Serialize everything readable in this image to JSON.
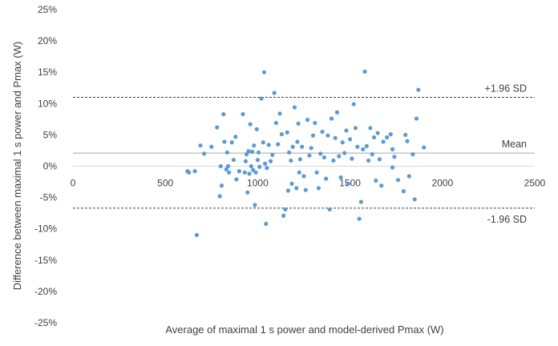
{
  "chart_data": {
    "type": "scatter",
    "title": "",
    "xlabel": "Average of maximal 1 s power and model-derived Pmax (W)",
    "ylabel": "Difference between maximal 1 s power and Pmax (W)",
    "xlim": [
      0,
      2500
    ],
    "ylim": [
      -25,
      25
    ],
    "x_ticks": [
      0,
      500,
      1000,
      1500,
      2000,
      2500
    ],
    "x_tick_labels": [
      "0",
      "500",
      "1000",
      "1500",
      "2000",
      "2500"
    ],
    "y_ticks": [
      25,
      20,
      15,
      10,
      5,
      0,
      -5,
      -10,
      -15,
      -20,
      -25
    ],
    "y_tick_labels": [
      "25%",
      "20%",
      "15%",
      "10%",
      "5%",
      "0%",
      "-5%",
      "-10%",
      "-15%",
      "-20%",
      "-25%"
    ],
    "grid": false,
    "marker_color": "#5b9bd5",
    "reference_lines": [
      {
        "label": "+1.96 SD",
        "value": 11.0,
        "style": "dashed",
        "color": "#404040"
      },
      {
        "label": "Mean",
        "value": 2.1,
        "style": "solid",
        "color": "#a6a6a6"
      },
      {
        "label": "-1.96 SD",
        "value": -6.7,
        "style": "dashed",
        "color": "#404040"
      }
    ],
    "points": [
      [
        620,
        -0.8
      ],
      [
        628,
        -1.0
      ],
      [
        660,
        -0.8
      ],
      [
        670,
        -11.0
      ],
      [
        690,
        3.3
      ],
      [
        710,
        2.0
      ],
      [
        750,
        3.1
      ],
      [
        780,
        6.2
      ],
      [
        795,
        -4.8
      ],
      [
        800,
        0.0
      ],
      [
        805,
        -3.1
      ],
      [
        815,
        8.3
      ],
      [
        820,
        3.9
      ],
      [
        830,
        -0.5
      ],
      [
        835,
        2.2
      ],
      [
        840,
        0.0
      ],
      [
        845,
        -1.0
      ],
      [
        860,
        3.8
      ],
      [
        870,
        1.0
      ],
      [
        880,
        4.7
      ],
      [
        885,
        -2.1
      ],
      [
        900,
        -0.8
      ],
      [
        920,
        8.3
      ],
      [
        930,
        -1.0
      ],
      [
        935,
        0.8
      ],
      [
        940,
        1.9
      ],
      [
        945,
        -4.2
      ],
      [
        950,
        2.4
      ],
      [
        955,
        -1.2
      ],
      [
        960,
        6.7
      ],
      [
        965,
        0.0
      ],
      [
        970,
        2.3
      ],
      [
        975,
        -0.6
      ],
      [
        980,
        3.3
      ],
      [
        985,
        -6.2
      ],
      [
        990,
        -1.0
      ],
      [
        995,
        5.9
      ],
      [
        1000,
        1.0
      ],
      [
        1005,
        2.2
      ],
      [
        1010,
        -0.1
      ],
      [
        1020,
        10.8
      ],
      [
        1030,
        3.8
      ],
      [
        1035,
        15.0
      ],
      [
        1040,
        0.4
      ],
      [
        1045,
        -9.2
      ],
      [
        1050,
        -0.3
      ],
      [
        1060,
        3.4
      ],
      [
        1070,
        0.8
      ],
      [
        1080,
        1.8
      ],
      [
        1090,
        11.7
      ],
      [
        1100,
        6.9
      ],
      [
        1110,
        3.5
      ],
      [
        1120,
        8.4
      ],
      [
        1130,
        5.1
      ],
      [
        1140,
        -7.9
      ],
      [
        1150,
        -6.9
      ],
      [
        1160,
        5.4
      ],
      [
        1165,
        -3.9
      ],
      [
        1170,
        2.2
      ],
      [
        1180,
        0.9
      ],
      [
        1185,
        -2.8
      ],
      [
        1190,
        3.1
      ],
      [
        1200,
        9.4
      ],
      [
        1210,
        -3.5
      ],
      [
        1215,
        3.9
      ],
      [
        1220,
        6.8
      ],
      [
        1225,
        -1.0
      ],
      [
        1230,
        1.1
      ],
      [
        1240,
        3.1
      ],
      [
        1250,
        -1.6
      ],
      [
        1260,
        -3.8
      ],
      [
        1270,
        7.4
      ],
      [
        1280,
        1.7
      ],
      [
        1290,
        2.9
      ],
      [
        1300,
        4.9
      ],
      [
        1310,
        6.9
      ],
      [
        1320,
        -1.0
      ],
      [
        1330,
        -3.5
      ],
      [
        1340,
        2.0
      ],
      [
        1350,
        5.5
      ],
      [
        1360,
        1.4
      ],
      [
        1370,
        -2.0
      ],
      [
        1380,
        4.9
      ],
      [
        1390,
        -6.9
      ],
      [
        1400,
        7.6
      ],
      [
        1410,
        0.9
      ],
      [
        1420,
        4.5
      ],
      [
        1430,
        8.6
      ],
      [
        1440,
        1.6
      ],
      [
        1450,
        -1.8
      ],
      [
        1460,
        3.8
      ],
      [
        1470,
        2.1
      ],
      [
        1480,
        5.7
      ],
      [
        1490,
        -2.8
      ],
      [
        1500,
        4.3
      ],
      [
        1510,
        1.2
      ],
      [
        1520,
        9.9
      ],
      [
        1530,
        6.1
      ],
      [
        1540,
        3.1
      ],
      [
        1550,
        -8.4
      ],
      [
        1560,
        -5.7
      ],
      [
        1570,
        2.7
      ],
      [
        1580,
        15.1
      ],
      [
        1590,
        3.2
      ],
      [
        1600,
        0.9
      ],
      [
        1610,
        6.1
      ],
      [
        1620,
        1.9
      ],
      [
        1630,
        4.6
      ],
      [
        1640,
        -2.3
      ],
      [
        1650,
        5.3
      ],
      [
        1660,
        1.1
      ],
      [
        1670,
        -3.1
      ],
      [
        1680,
        3.9
      ],
      [
        1700,
        4.6
      ],
      [
        1720,
        5.1
      ],
      [
        1730,
        2.7
      ],
      [
        1740,
        1.5
      ],
      [
        1760,
        -2.2
      ],
      [
        1790,
        -4.0
      ],
      [
        1800,
        5.0
      ],
      [
        1820,
        -1.6
      ],
      [
        1840,
        1.9
      ],
      [
        1850,
        -5.3
      ],
      [
        1860,
        7.6
      ],
      [
        1870,
        12.2
      ],
      [
        1810,
        4.0
      ],
      [
        1900,
        3.0
      ],
      [
        1730,
        -0.2
      ]
    ]
  }
}
